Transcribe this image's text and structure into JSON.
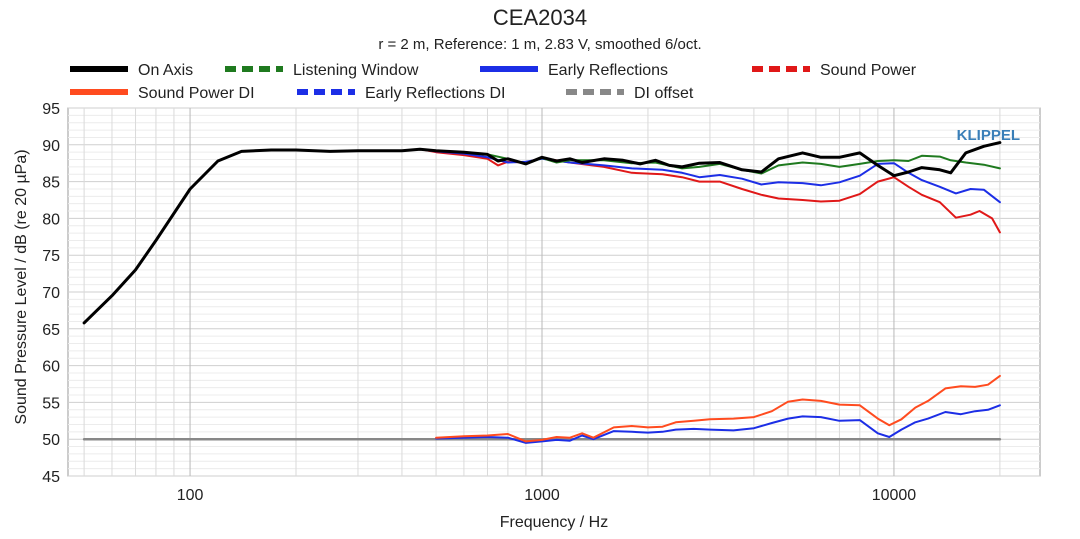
{
  "chart_data": {
    "type": "line",
    "title": "CEA2034",
    "subtitle": "r = 2 m,  Reference: 1 m, 2.83 V, smoothed 6/oct.",
    "xlabel": "Frequency / Hz",
    "ylabel": "Sound Pressure Level / dB (re 20 µPa)",
    "x_scale": "log",
    "xlim": [
      45,
      26000
    ],
    "ylim": [
      45,
      95
    ],
    "x_ticks": [
      {
        "value": 100,
        "label": "100"
      },
      {
        "value": 1000,
        "label": "1000"
      },
      {
        "value": 10000,
        "label": "10000"
      }
    ],
    "y_ticks": [
      45,
      50,
      55,
      60,
      65,
      70,
      75,
      80,
      85,
      90,
      95
    ],
    "grid": true,
    "brand": "KLIPPEL",
    "brand_color": "#3a7fb8",
    "legend_placement": "top",
    "series": [
      {
        "name": "On Axis",
        "color": "#000000",
        "dash": "solid",
        "points": [
          [
            50,
            65.8
          ],
          [
            60,
            69.5
          ],
          [
            70,
            73
          ],
          [
            80,
            77
          ],
          [
            100,
            84
          ],
          [
            120,
            87.8
          ],
          [
            140,
            89.1
          ],
          [
            170,
            89.3
          ],
          [
            200,
            89.3
          ],
          [
            250,
            89.1
          ],
          [
            300,
            89.2
          ],
          [
            400,
            89.2
          ],
          [
            450,
            89.4
          ],
          [
            500,
            89.2
          ],
          [
            600,
            89
          ],
          [
            700,
            88.7
          ],
          [
            750,
            87.8
          ],
          [
            800,
            88.1
          ],
          [
            900,
            87.4
          ],
          [
            1000,
            88.3
          ],
          [
            1100,
            87.8
          ],
          [
            1200,
            88.1
          ],
          [
            1300,
            87.6
          ],
          [
            1500,
            88.1
          ],
          [
            1700,
            87.9
          ],
          [
            1900,
            87.4
          ],
          [
            2100,
            87.9
          ],
          [
            2300,
            87.2
          ],
          [
            2500,
            87
          ],
          [
            2800,
            87.5
          ],
          [
            3200,
            87.6
          ],
          [
            3700,
            86.6
          ],
          [
            4200,
            86.3
          ],
          [
            4700,
            88.1
          ],
          [
            5500,
            88.9
          ],
          [
            6200,
            88.3
          ],
          [
            7000,
            88.3
          ],
          [
            8000,
            88.9
          ],
          [
            9000,
            87.2
          ],
          [
            10000,
            85.8
          ],
          [
            11000,
            86.3
          ],
          [
            12000,
            86.9
          ],
          [
            13500,
            86.6
          ],
          [
            14500,
            86.2
          ],
          [
            16000,
            88.9
          ],
          [
            18000,
            89.8
          ],
          [
            20000,
            90.3
          ]
        ]
      },
      {
        "name": "Listening Window",
        "color": "#1f7a1f",
        "dash": "dashed",
        "points": [
          [
            50,
            65.8
          ],
          [
            60,
            69.5
          ],
          [
            70,
            73
          ],
          [
            80,
            77
          ],
          [
            100,
            84
          ],
          [
            120,
            87.8
          ],
          [
            140,
            89.1
          ],
          [
            170,
            89.3
          ],
          [
            200,
            89.3
          ],
          [
            250,
            89.1
          ],
          [
            300,
            89.2
          ],
          [
            400,
            89.2
          ],
          [
            450,
            89.4
          ],
          [
            500,
            89.2
          ],
          [
            600,
            89
          ],
          [
            700,
            88.7
          ],
          [
            800,
            88.1
          ],
          [
            900,
            87.4
          ],
          [
            1000,
            88.2
          ],
          [
            1100,
            87.6
          ],
          [
            1200,
            87.9
          ],
          [
            1500,
            87.9
          ],
          [
            1800,
            87.5
          ],
          [
            2100,
            87.6
          ],
          [
            2500,
            86.8
          ],
          [
            2800,
            87
          ],
          [
            3200,
            87.4
          ],
          [
            3700,
            86.6
          ],
          [
            4200,
            86.1
          ],
          [
            4700,
            87.2
          ],
          [
            5500,
            87.6
          ],
          [
            6200,
            87.4
          ],
          [
            7000,
            87
          ],
          [
            8000,
            87.4
          ],
          [
            9000,
            87.8
          ],
          [
            10000,
            87.9
          ],
          [
            11000,
            87.8
          ],
          [
            12000,
            88.5
          ],
          [
            13500,
            88.4
          ],
          [
            14500,
            87.9
          ],
          [
            16000,
            87.6
          ],
          [
            18000,
            87.3
          ],
          [
            20000,
            86.8
          ]
        ]
      },
      {
        "name": "Early Reflections",
        "color": "#1c2ee6",
        "dash": "solid",
        "points": [
          [
            50,
            65.8
          ],
          [
            60,
            69.5
          ],
          [
            70,
            73
          ],
          [
            80,
            77
          ],
          [
            100,
            84
          ],
          [
            120,
            87.8
          ],
          [
            140,
            89.1
          ],
          [
            170,
            89.3
          ],
          [
            200,
            89.3
          ],
          [
            250,
            89.1
          ],
          [
            300,
            89.2
          ],
          [
            400,
            89.2
          ],
          [
            450,
            89.4
          ],
          [
            500,
            89.1
          ],
          [
            600,
            88.8
          ],
          [
            700,
            88.3
          ],
          [
            800,
            87.6
          ],
          [
            900,
            87.7
          ],
          [
            1000,
            88.1
          ],
          [
            1200,
            87.6
          ],
          [
            1500,
            87.2
          ],
          [
            1800,
            86.8
          ],
          [
            2200,
            86.6
          ],
          [
            2500,
            86.2
          ],
          [
            2800,
            85.6
          ],
          [
            3200,
            85.9
          ],
          [
            3700,
            85.4
          ],
          [
            4200,
            84.6
          ],
          [
            4700,
            84.9
          ],
          [
            5500,
            84.8
          ],
          [
            6200,
            84.5
          ],
          [
            7000,
            84.9
          ],
          [
            8000,
            85.8
          ],
          [
            9000,
            87.4
          ],
          [
            10000,
            87.5
          ],
          [
            11000,
            86.2
          ],
          [
            12000,
            85.2
          ],
          [
            13500,
            84.3
          ],
          [
            15000,
            83.4
          ],
          [
            16500,
            84
          ],
          [
            18000,
            83.9
          ],
          [
            20000,
            82.2
          ]
        ]
      },
      {
        "name": "Sound Power",
        "color": "#e01818",
        "dash": "dashed",
        "points": [
          [
            50,
            65.8
          ],
          [
            60,
            69.5
          ],
          [
            70,
            73
          ],
          [
            80,
            77
          ],
          [
            100,
            84
          ],
          [
            120,
            87.8
          ],
          [
            140,
            89.1
          ],
          [
            170,
            89.3
          ],
          [
            200,
            89.3
          ],
          [
            250,
            89.1
          ],
          [
            300,
            89.2
          ],
          [
            400,
            89.2
          ],
          [
            450,
            89.4
          ],
          [
            500,
            89
          ],
          [
            600,
            88.6
          ],
          [
            700,
            88.1
          ],
          [
            750,
            87.2
          ],
          [
            800,
            87.7
          ],
          [
            900,
            87.6
          ],
          [
            1000,
            88.2
          ],
          [
            1200,
            87.6
          ],
          [
            1500,
            87
          ],
          [
            1800,
            86.2
          ],
          [
            2200,
            86
          ],
          [
            2500,
            85.6
          ],
          [
            2800,
            85
          ],
          [
            3200,
            85
          ],
          [
            3700,
            84
          ],
          [
            4200,
            83.2
          ],
          [
            4700,
            82.7
          ],
          [
            5500,
            82.5
          ],
          [
            6200,
            82.3
          ],
          [
            7000,
            82.4
          ],
          [
            8000,
            83.3
          ],
          [
            9000,
            85
          ],
          [
            10000,
            85.6
          ],
          [
            11000,
            84.3
          ],
          [
            12000,
            83.2
          ],
          [
            13500,
            82.2
          ],
          [
            15000,
            80.1
          ],
          [
            16500,
            80.5
          ],
          [
            17500,
            81
          ],
          [
            19000,
            80
          ],
          [
            20000,
            78.1
          ]
        ]
      },
      {
        "name": "Sound Power DI",
        "color": "#ff4b1f",
        "dash": "solid",
        "points": [
          [
            500,
            50.2
          ],
          [
            600,
            50.4
          ],
          [
            700,
            50.5
          ],
          [
            800,
            50.7
          ],
          [
            900,
            49.7
          ],
          [
            1000,
            49.9
          ],
          [
            1100,
            50.3
          ],
          [
            1200,
            50.2
          ],
          [
            1300,
            50.8
          ],
          [
            1400,
            50.2
          ],
          [
            1600,
            51.6
          ],
          [
            1800,
            51.8
          ],
          [
            2000,
            51.6
          ],
          [
            2200,
            51.7
          ],
          [
            2400,
            52.3
          ],
          [
            2700,
            52.5
          ],
          [
            3000,
            52.7
          ],
          [
            3500,
            52.8
          ],
          [
            4000,
            53
          ],
          [
            4500,
            53.8
          ],
          [
            5000,
            55.1
          ],
          [
            5500,
            55.4
          ],
          [
            6200,
            55.2
          ],
          [
            7000,
            54.7
          ],
          [
            8000,
            54.6
          ],
          [
            9000,
            52.8
          ],
          [
            9700,
            51.9
          ],
          [
            10500,
            52.7
          ],
          [
            11500,
            54.3
          ],
          [
            12500,
            55.2
          ],
          [
            14000,
            56.9
          ],
          [
            15500,
            57.2
          ],
          [
            17000,
            57.1
          ],
          [
            18500,
            57.4
          ],
          [
            20000,
            58.6
          ]
        ]
      },
      {
        "name": "Early Reflections DI",
        "color": "#1c2ee6",
        "dash": "dashed",
        "points": [
          [
            500,
            50.1
          ],
          [
            600,
            50.2
          ],
          [
            700,
            50.3
          ],
          [
            800,
            50.2
          ],
          [
            900,
            49.5
          ],
          [
            1000,
            49.7
          ],
          [
            1100,
            49.9
          ],
          [
            1200,
            49.8
          ],
          [
            1300,
            50.5
          ],
          [
            1400,
            50
          ],
          [
            1600,
            51.1
          ],
          [
            1800,
            51
          ],
          [
            2000,
            50.9
          ],
          [
            2200,
            51
          ],
          [
            2400,
            51.3
          ],
          [
            2700,
            51.4
          ],
          [
            3000,
            51.3
          ],
          [
            3500,
            51.2
          ],
          [
            4000,
            51.5
          ],
          [
            4500,
            52.2
          ],
          [
            5000,
            52.8
          ],
          [
            5500,
            53.1
          ],
          [
            6200,
            53
          ],
          [
            7000,
            52.5
          ],
          [
            8000,
            52.6
          ],
          [
            9000,
            50.8
          ],
          [
            9700,
            50.3
          ],
          [
            10500,
            51.3
          ],
          [
            11500,
            52.3
          ],
          [
            12500,
            52.8
          ],
          [
            14000,
            53.7
          ],
          [
            15500,
            53.4
          ],
          [
            17000,
            53.8
          ],
          [
            18500,
            54
          ],
          [
            20000,
            54.6
          ]
        ]
      },
      {
        "name": "DI offset",
        "color": "#888888",
        "dash": "dashed",
        "points": [
          [
            50,
            50
          ],
          [
            20000,
            50
          ]
        ]
      }
    ]
  }
}
